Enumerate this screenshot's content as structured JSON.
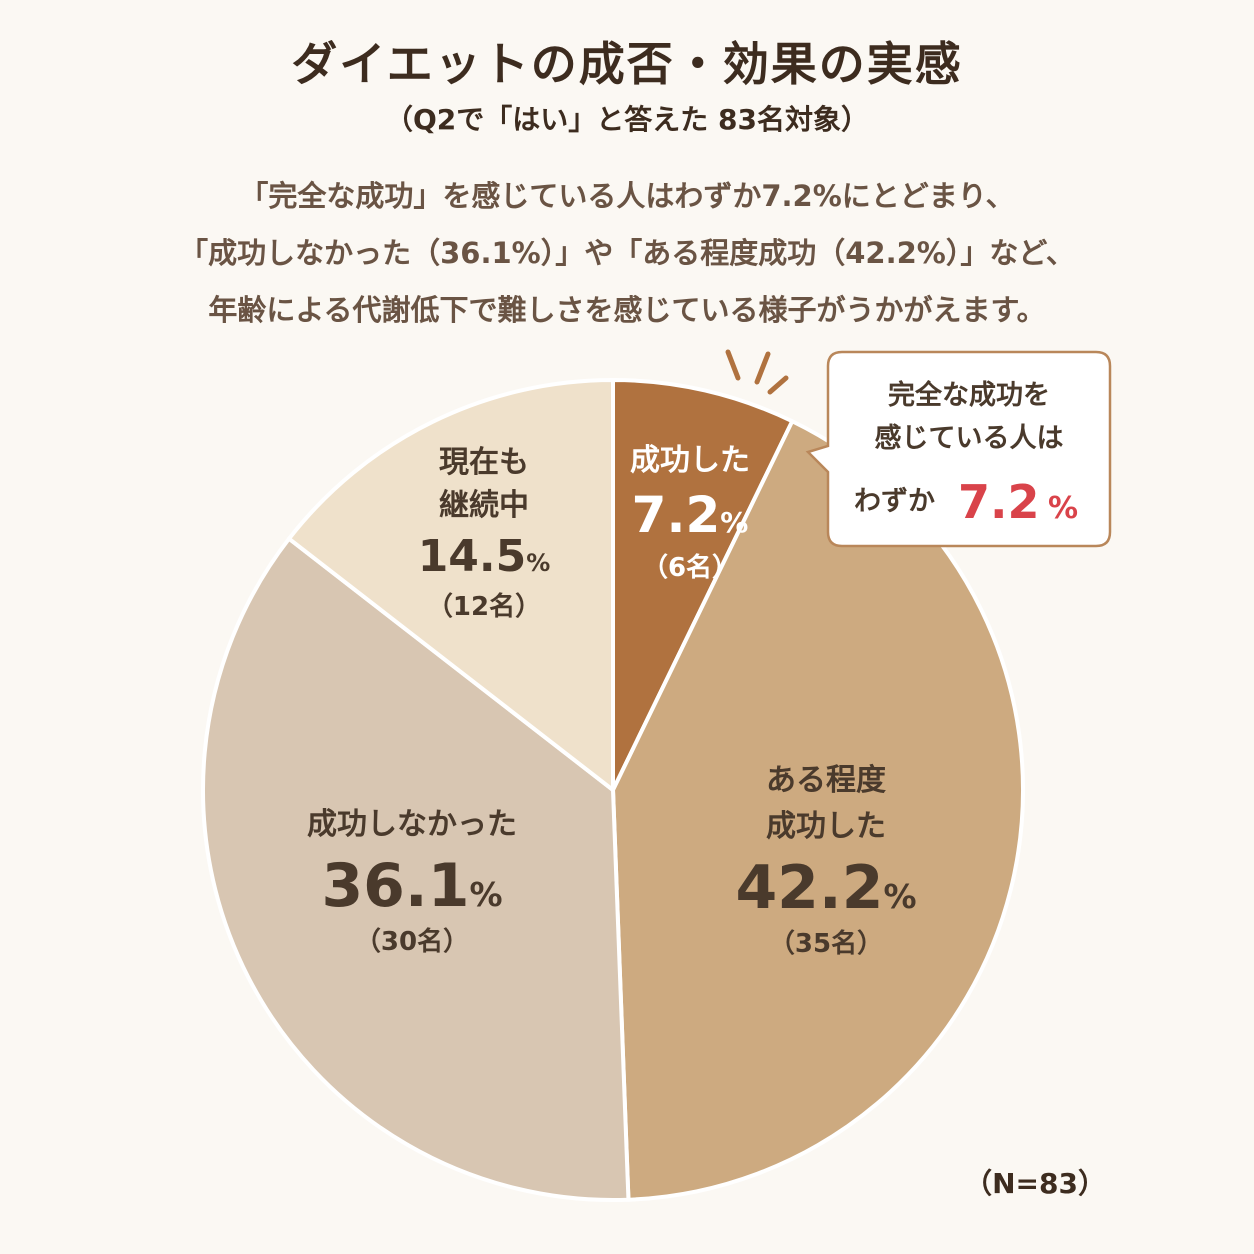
{
  "header": {
    "title": "ダイエットの成否・効果の実感",
    "subtitle": "（Q2で「はい」と答えた 83名対象）",
    "description": [
      "「完全な成功」を感じている人はわずか7.2%にとどまり、",
      "「成功しなかった（36.1%）」や「ある程度成功（42.2%）」など、",
      "年齢による代謝低下で難しさを感じている様子がうかがえます。"
    ]
  },
  "callout": {
    "line1": "完全な成功を",
    "line2": "感じている人は",
    "prefix": "わずか",
    "value": "7.2",
    "unit": "%"
  },
  "note": "（N=83）",
  "chart_data": {
    "type": "pie",
    "total": 83,
    "slices": [
      {
        "label_lines": [
          "成功した"
        ],
        "value": 7.2,
        "percent_text": "7.2",
        "unit": "%",
        "count_text": "（6名）",
        "count": 6,
        "color": "#b0723f",
        "text_color": "#ffffff"
      },
      {
        "label_lines": [
          "ある程度",
          "成功した"
        ],
        "value": 42.2,
        "percent_text": "42.2",
        "unit": "%",
        "count_text": "（35名）",
        "count": 35,
        "color": "#cdaa80",
        "text_color": "#4a3a2c"
      },
      {
        "label_lines": [
          "成功しなかった"
        ],
        "value": 36.1,
        "percent_text": "36.1",
        "unit": "%",
        "count_text": "（30名）",
        "count": 30,
        "color": "#d8c6b2",
        "text_color": "#4a3a2c"
      },
      {
        "label_lines": [
          "現在も",
          "継続中"
        ],
        "value": 14.5,
        "percent_text": "14.5",
        "unit": "%",
        "count_text": "（12名）",
        "count": 12,
        "color": "#efe1cb",
        "text_color": "#4a3a2c"
      }
    ],
    "accent_color": "#d9434a",
    "border_color": "#b9875a"
  }
}
